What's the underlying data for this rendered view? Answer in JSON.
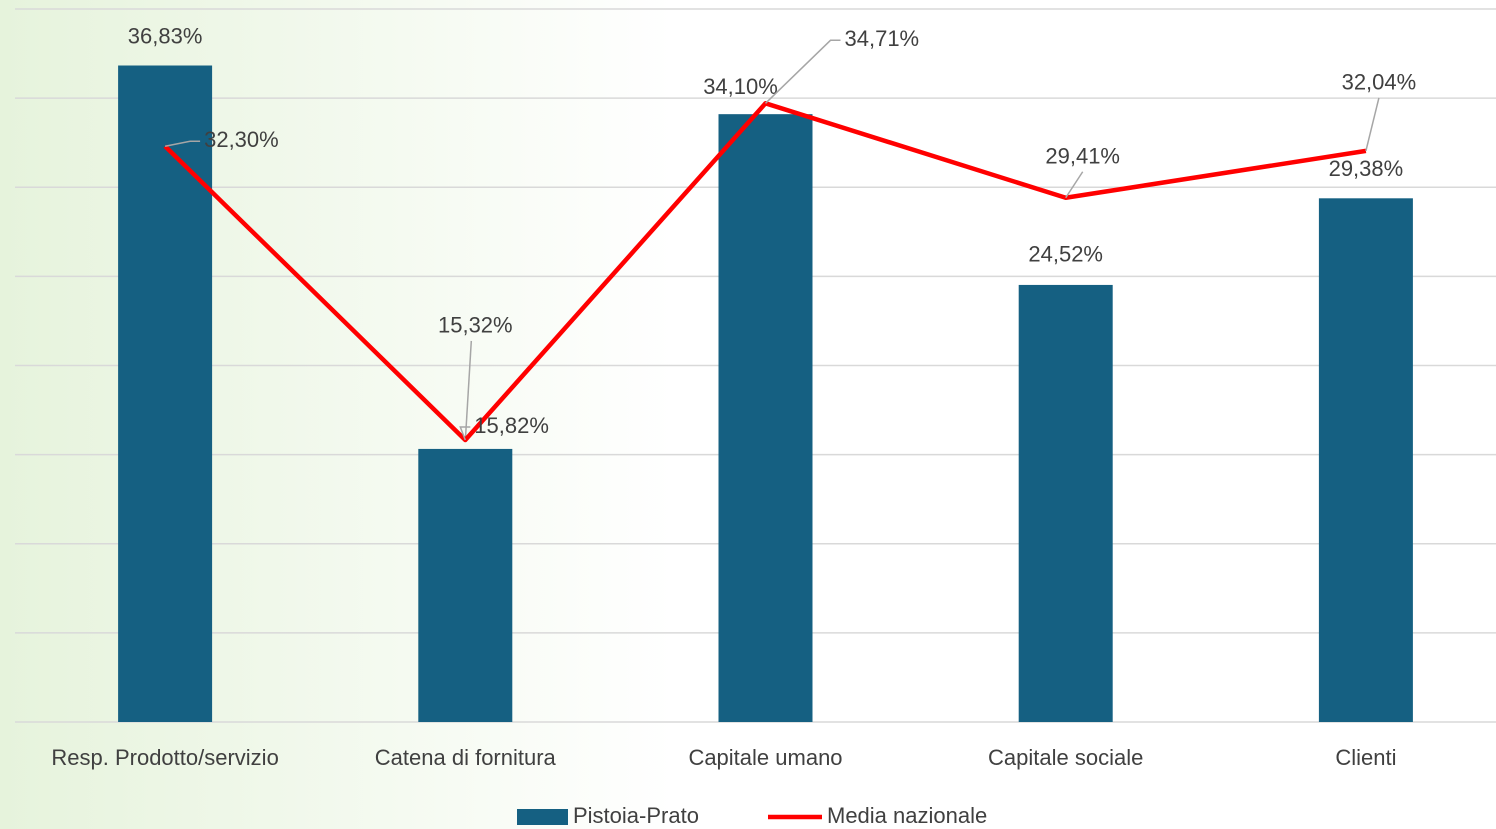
{
  "chart_data": {
    "type": "bar",
    "categories": [
      "Resp. Prodotto/servizio",
      "Catena di fornitura",
      "Capitale umano",
      "Capitale sociale",
      "Clienti"
    ],
    "series": [
      {
        "name": "Pistoia-Prato",
        "type": "bar",
        "color": "#156082",
        "values": [
          36.83,
          15.32,
          34.1,
          24.52,
          29.38
        ],
        "value_labels": [
          "36,83%",
          "15,32%",
          "34,10%",
          "24,52%",
          "29,38%"
        ]
      },
      {
        "name": "Media nazionale",
        "type": "line",
        "color": "#ff0000",
        "values": [
          32.3,
          15.82,
          34.71,
          29.41,
          32.04
        ],
        "value_labels": [
          "32,30%",
          "15,82%",
          "34,71%",
          "29,41%",
          "32,04%"
        ]
      }
    ],
    "ylim": [
      0,
      40
    ],
    "yticks": [
      0,
      5,
      10,
      15,
      20,
      25,
      30,
      35,
      40
    ],
    "grid": true,
    "legend": "bottom"
  }
}
